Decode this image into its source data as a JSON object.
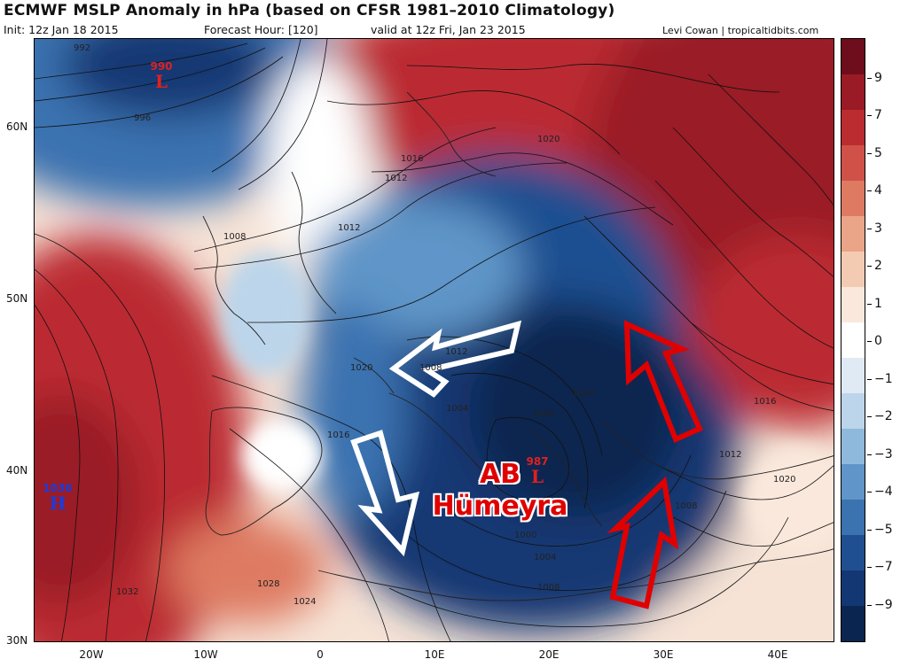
{
  "title": "ECMWF MSLP Anomaly in hPa (based on CFSR 1981–2010 Climatology)",
  "init": "Init: 12z Jan 18 2015",
  "forecast_hour": "Forecast Hour: [120]",
  "valid": "valid at 12z Fri, Jan 23 2015",
  "credit": "Levi Cowan | tropicaltidbits.com",
  "lat_labels": [
    "60N",
    "50N",
    "40N",
    "30N"
  ],
  "lon_labels": [
    "20W",
    "10W",
    "0",
    "10E",
    "20E",
    "30E",
    "40E"
  ],
  "colorbar_labels": [
    "9",
    "7",
    "5",
    "4",
    "3",
    "2",
    "1",
    "0",
    "−1",
    "−2",
    "−3",
    "−4",
    "−5",
    "−7",
    "−9"
  ],
  "colorbar_colors": [
    "#6e0d1c",
    "#9a1a25",
    "#bb2c30",
    "#cf5148",
    "#de7a62",
    "#eaa487",
    "#f3cbb2",
    "#fae8dc",
    "#ffffff",
    "#dfeaf4",
    "#bcd5ea",
    "#8fb9dc",
    "#5f95c8",
    "#3b72b0",
    "#1f4f91",
    "#123773",
    "#0a2550"
  ],
  "pressure_centers": [
    {
      "type": "L",
      "value": "990",
      "color": "#e02020"
    },
    {
      "type": "H",
      "value": "1036",
      "color": "#1a3ce0"
    },
    {
      "type": "L",
      "value": "987",
      "color": "#e02020"
    }
  ],
  "isobar_labels": [
    "992",
    "996",
    "1016",
    "1020",
    "1012",
    "1012",
    "1008",
    "1012",
    "1008",
    "1020",
    "1016",
    "1004",
    "1000",
    "1004",
    "1016",
    "1012",
    "1020",
    "1008",
    "1000",
    "1004",
    "1008",
    "1028",
    "1024",
    "1032"
  ],
  "annotation": {
    "line1": "AB",
    "line2": "Hümeyra"
  }
}
